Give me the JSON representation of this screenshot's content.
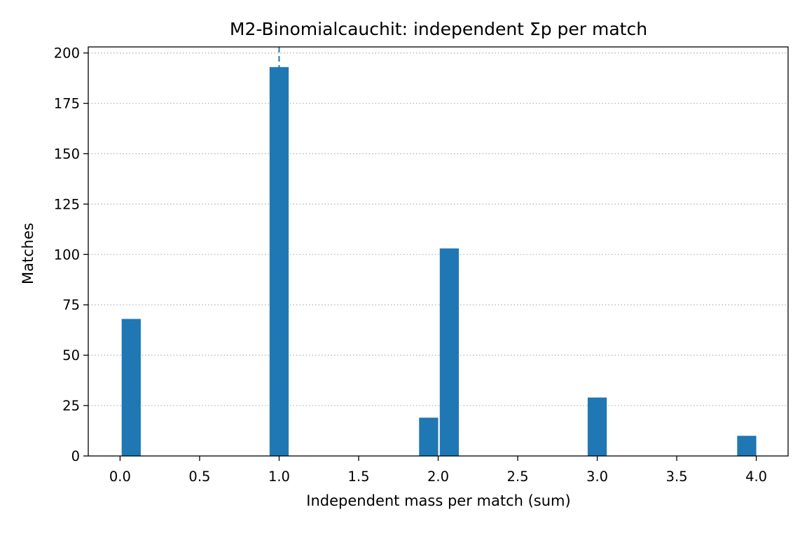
{
  "chart_data": {
    "type": "bar",
    "title": "M2-Binomialcauchit: independent Σp per match",
    "xlabel": "Independent mass per match (sum)",
    "ylabel": "Matches",
    "xlim": [
      -0.2,
      4.2
    ],
    "ylim": [
      0,
      203
    ],
    "x_ticks": [
      0.0,
      0.5,
      1.0,
      1.5,
      2.0,
      2.5,
      3.0,
      3.5,
      4.0
    ],
    "x_tick_labels": [
      "0.0",
      "0.5",
      "1.0",
      "1.5",
      "2.0",
      "2.5",
      "3.0",
      "3.5",
      "4.0"
    ],
    "y_ticks": [
      0,
      25,
      50,
      75,
      100,
      125,
      150,
      175,
      200
    ],
    "y_tick_labels": [
      "0",
      "25",
      "50",
      "75",
      "100",
      "125",
      "150",
      "175",
      "200"
    ],
    "grid": "y-dotted",
    "bar_color": "#1f77b4",
    "bar_width": 0.12,
    "bars": [
      {
        "x": 0.07,
        "value": 68
      },
      {
        "x": 1.0,
        "value": 193
      },
      {
        "x": 1.94,
        "value": 19
      },
      {
        "x": 2.07,
        "value": 103
      },
      {
        "x": 3.0,
        "value": 29
      },
      {
        "x": 3.94,
        "value": 10
      }
    ],
    "reference_line": {
      "x": 1.0,
      "style": "dashed",
      "color": "#1f77b4"
    }
  }
}
